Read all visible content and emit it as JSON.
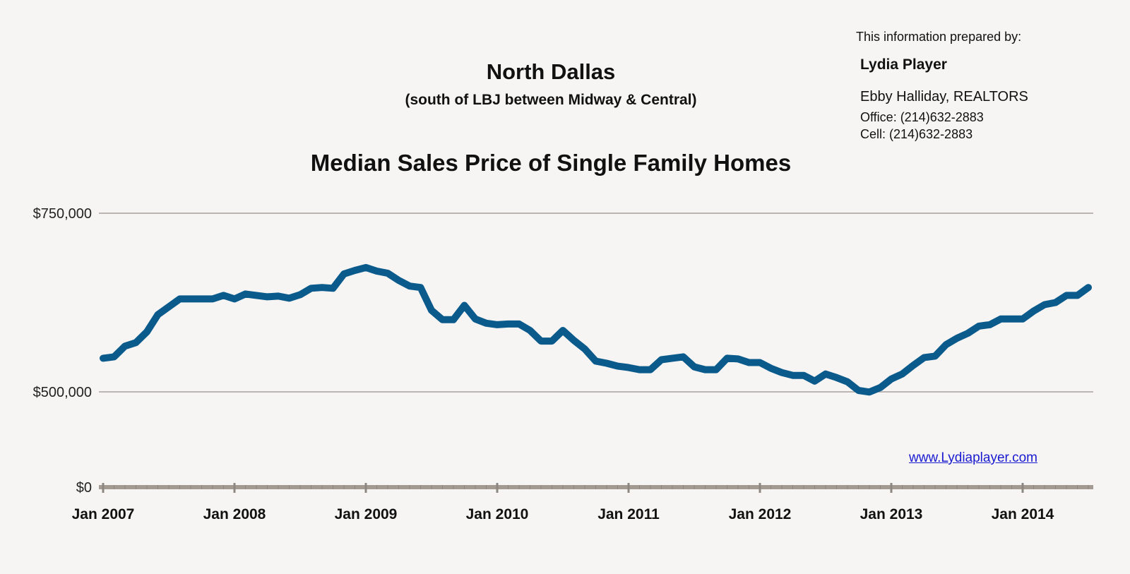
{
  "header": {
    "title": "North Dallas",
    "subtitle": "(south of LBJ between Midway & Central)"
  },
  "contact": {
    "prepared_by": "This information prepared by:",
    "agent": "Lydia Player",
    "company": "Ebby Halliday, REALTORS",
    "office": "Office: (214)632-2883",
    "cell": "Cell: (214)632-2883",
    "website": "www.Lydiaplayer.com"
  },
  "chart_data": {
    "type": "line",
    "title": "Median Sales Price of Single Family Homes",
    "xlabel": "",
    "ylabel": "",
    "x_start": "Jan 2007",
    "x_end": "Jul 2014",
    "x_interval": "monthly",
    "x_tick_labels": [
      "Jan 2007",
      "Jan 2008",
      "Jan 2009",
      "Jan 2010",
      "Jan 2011",
      "Jan 2012",
      "Jan 2013",
      "Jan 2014"
    ],
    "y_tick_labels": [
      "$0",
      "$500,000",
      "$750,000"
    ],
    "y_ticks": [
      0,
      500000,
      750000
    ],
    "ylim": [
      0,
      750000
    ],
    "y_axis_break": "between $0 and $500,000",
    "grid": true,
    "line_color": "#0b5a8c",
    "series": [
      {
        "values": [
          547000,
          549000,
          564000,
          569000,
          584000,
          608000,
          619000,
          630000,
          630000,
          630000,
          630000,
          635000,
          630000,
          637000,
          635000,
          633000,
          634000,
          631000,
          636000,
          645000,
          646000,
          645000,
          665000,
          670000,
          674000,
          669000,
          666000,
          656000,
          648000,
          646000,
          614000,
          601000,
          601000,
          621000,
          602000,
          596000,
          594000,
          595000,
          595000,
          586000,
          571000,
          571000,
          586000,
          572000,
          560000,
          543000,
          540000,
          536000,
          534000,
          531000,
          531000,
          545000,
          547000,
          549000,
          535000,
          531000,
          531000,
          547000,
          546000,
          541000,
          541000,
          533000,
          527000,
          523000,
          523000,
          515000,
          525000,
          520000,
          514000,
          502000,
          499000,
          506000,
          518000,
          525000,
          537000,
          548000,
          550000,
          566000,
          575000,
          582000,
          592000,
          594000,
          602000,
          602000,
          602000,
          613000,
          622000,
          625000,
          635000,
          635000,
          646000
        ]
      }
    ]
  }
}
